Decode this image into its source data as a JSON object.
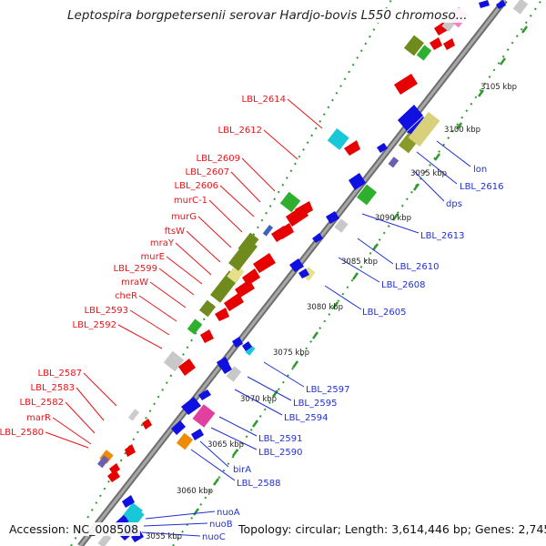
{
  "title": "Leptospira borgpetersenii serovar Hardjo-bovis L550 chromoso...",
  "footer": {
    "accession": "Accession: NC_008508",
    "summary": "Topology: circular; Length: 3,614,446 bp; Genes: 2,745"
  },
  "colors": {
    "forward_label": "#e8141a",
    "reverse_label": "#1f2fd6",
    "backbone": "#8a8a8a",
    "tick_dots": "#2e9a2e"
  },
  "kbp_labels": [
    "3055 kbp",
    "3060 kbp",
    "3065 kbp",
    "3070 kbp",
    "3075 kbp",
    "3080 kbp",
    "3085 kbp",
    "3090 kbp",
    "3095 kbp",
    "3100 kbp",
    "3105 kbp"
  ],
  "left_labels": [
    "LBL_2614",
    "LBL_2612",
    "LBL_2609",
    "LBL_2607",
    "LBL_2606",
    "murC-1",
    "murG",
    "ftsW",
    "mraY",
    "murE",
    "LBL_2599",
    "mraW",
    "cheR",
    "LBL_2593",
    "LBL_2592",
    "LBL_2587",
    "LBL_2583",
    "LBL_2582",
    "marR",
    "LBL_2580"
  ],
  "right_labels": [
    "lon",
    "LBL_2616",
    "dps",
    "LBL_2613",
    "LBL_2610",
    "LBL_2608",
    "LBL_2605",
    "LBL_2597",
    "LBL_2595",
    "LBL_2594",
    "LBL_2591",
    "LBL_2590",
    "birA",
    "LBL_2588",
    "nuoA",
    "nuoB",
    "nuoC"
  ]
}
